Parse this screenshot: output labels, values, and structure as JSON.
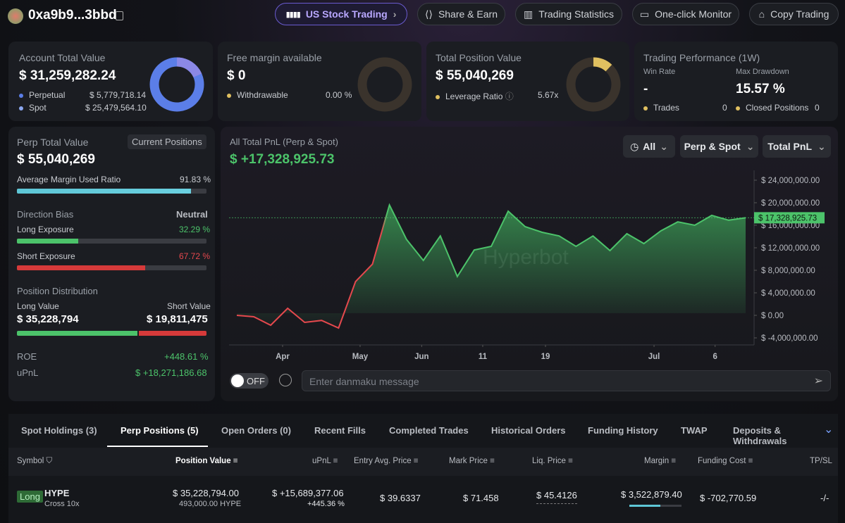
{
  "header": {
    "address": "0xa9b9...3bbd",
    "nav": [
      "US Stock Trading",
      "Share & Earn",
      "Trading Statistics",
      "One-click Monitor",
      "Copy Trading"
    ]
  },
  "cards": [
    {
      "title": "Account Total Value",
      "value": "$ 31,259,282.24",
      "items": [
        {
          "label": "Perpetual",
          "value": "$ 5,779,718.14"
        },
        {
          "label": "Spot",
          "value": "$ 25,479,564.10"
        }
      ]
    },
    {
      "title": "Free margin available",
      "value": "$ 0",
      "items": [
        {
          "label": "Withdrawable",
          "value": "0.00 %"
        }
      ]
    },
    {
      "title": "Total Position Value",
      "value": "$ 55,040,269",
      "items": [
        {
          "label": "Leverage Ratio",
          "value": "5.67x"
        }
      ]
    },
    {
      "title": "Trading Performance (1W)",
      "win_rate_label": "Win Rate",
      "win_rate": "-",
      "drawdown_label": "Max Drawdown",
      "drawdown": "15.57 %",
      "items": [
        {
          "label": "Trades",
          "value": "0"
        },
        {
          "label": "Closed Positions",
          "value": "0"
        }
      ]
    }
  ],
  "perp_panel": {
    "title": "Perp Total Value",
    "button": "Current Positions",
    "value": "$ 55,040,269",
    "avg_margin_label": "Average Margin Used Ratio",
    "avg_margin": {
      "value": 91.83,
      "label": "91.83 %"
    },
    "direction_label": "Direction Bias",
    "direction": "Neutral",
    "long_label": "Long Exposure",
    "long_exposure": {
      "value": 32.29,
      "label": "32.29 %"
    },
    "short_label": "Short Exposure",
    "short_exposure": {
      "value": 67.72,
      "label": "67.72 %"
    },
    "distribution_label": "Position Distribution",
    "long_value_label": "Long Value",
    "short_value_label": "Short Value",
    "long_value": {
      "value": 35228794,
      "label": "$ 35,228,794"
    },
    "short_value": {
      "value": 19811475,
      "label": "$ 19,811,475"
    },
    "roe_label": "ROE",
    "roe": "+448.61 %",
    "upnl_label": "uPnL",
    "upnl": "$ +18,271,186.68"
  },
  "pnl_chart": {
    "type": "area",
    "title": "All Total PnL (Perp & Spot)",
    "headline": "$ +17,328,925.73",
    "filters": [
      "All",
      "Perp & Spot",
      "Total PnL"
    ],
    "watermark": "Hyperbot",
    "values": [
      0,
      -250000,
      -1750000,
      1250000,
      -1250000,
      -900000,
      -2250000,
      6000000,
      9100000,
      19600000,
      13500000,
      9750000,
      14100000,
      6900000,
      11600000,
      12250000,
      18500000,
      15750000,
      14750000,
      14100000,
      12250000,
      14100000,
      11500000,
      14500000,
      12750000,
      15000000,
      16600000,
      16000000,
      17750000,
      16900000,
      17328925.73
    ],
    "xlim": [
      0,
      30
    ],
    "xticks": [
      {
        "value": 2.7,
        "label": "Apr"
      },
      {
        "value": 7.27,
        "label": "May"
      },
      {
        "value": 10.9,
        "label": "Jun"
      },
      {
        "value": 14.5,
        "label": "11"
      },
      {
        "value": 18.2,
        "label": "19"
      },
      {
        "value": 24.6,
        "label": "Jul"
      },
      {
        "value": 28.2,
        "label": "6"
      }
    ],
    "ylim": [
      -5250000,
      25750000
    ],
    "yticks": [
      {
        "value": -4000000,
        "label": "$ -4,000,000.00"
      },
      {
        "value": 0,
        "label": "$ 0.00"
      },
      {
        "value": 4000000,
        "label": "$ 4,000,000.00"
      },
      {
        "value": 8000000,
        "label": "$ 8,000,000.00"
      },
      {
        "value": 12000000,
        "label": "$ 12,000,000.00"
      },
      {
        "value": 16000000,
        "label": "$ 16,000,000.00"
      },
      {
        "value": 20000000,
        "label": "$ 20,000,000.00"
      },
      {
        "value": 24000000,
        "label": "$ 24,000,000.00"
      }
    ],
    "current": {
      "value": 17328925.73,
      "label": "$ 17,328,925.73"
    },
    "color": "#4cc36a"
  },
  "danmaku": {
    "toggle": "OFF",
    "placeholder": "Enter danmaku message"
  },
  "tabs": [
    "Spot Holdings (3)",
    "Perp Positions (5)",
    "Open Orders (0)",
    "Recent Fills",
    "Completed Trades",
    "Historical Orders",
    "Funding History",
    "TWAP",
    "Deposits & Withdrawals"
  ],
  "table": {
    "columns": [
      "Symbol",
      "Position Value",
      "uPnL",
      "Entry Avg. Price",
      "Mark Price",
      "Liq. Price",
      "Margin",
      "Funding Cost",
      "TP/SL"
    ],
    "rows": [
      {
        "side": "Long",
        "symbol": "HYPE",
        "mode": "Cross 10x",
        "position_value": "$ 35,228,794.00",
        "size": "493,000.00 HYPE",
        "upnl": "$ +15,689,377.06",
        "upnl_pct": "+445.36 %",
        "entry": "$ 39.6337",
        "mark": "$ 71.458",
        "liq": "$ 45.4126",
        "margin": "$ 3,522,879.40",
        "funding": "$ -702,770.59",
        "tpsl": "-/-"
      }
    ]
  }
}
